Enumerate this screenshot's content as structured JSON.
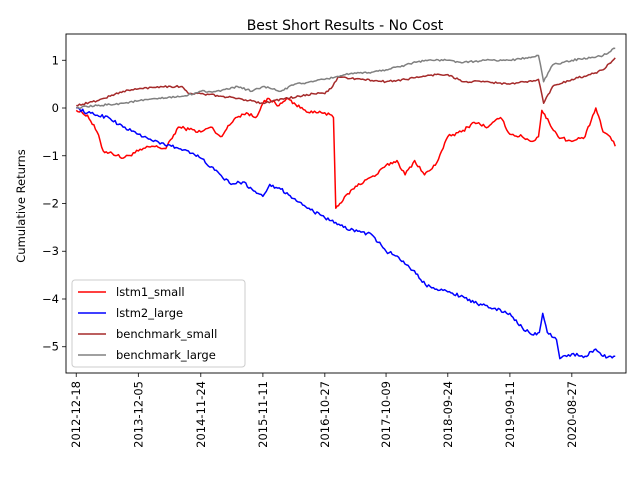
{
  "chart_data": {
    "type": "line",
    "title": "Best Short Results - No Cost",
    "xlabel": "",
    "ylabel": "Cumulative Returns",
    "x_tick_labels": [
      "2012-12-18",
      "2013-12-05",
      "2014-11-24",
      "2015-11-11",
      "2016-10-27",
      "2017-10-09",
      "2018-09-24",
      "2019-09-11",
      "2020-08-27"
    ],
    "xlim": [
      "2012-10-21",
      "2021-06-30"
    ],
    "ylim": [
      -5.55,
      1.55
    ],
    "y_ticks": [
      -5,
      -4,
      -3,
      -2,
      -1,
      0,
      1
    ],
    "legend_position": "lower-left",
    "grid": false,
    "series": [
      {
        "name": "lstm1_small",
        "color": "#ff0000",
        "points": [
          [
            "2012-12-18",
            -0.05
          ],
          [
            "2013-02-20",
            -0.15
          ],
          [
            "2013-04-15",
            -0.5
          ],
          [
            "2013-05-20",
            -0.9
          ],
          [
            "2013-07-10",
            -0.95
          ],
          [
            "2013-09-10",
            -1.05
          ],
          [
            "2013-12-05",
            -0.9
          ],
          [
            "2014-02-20",
            -0.8
          ],
          [
            "2014-05-10",
            -0.85
          ],
          [
            "2014-07-20",
            -0.4
          ],
          [
            "2014-09-20",
            -0.45
          ],
          [
            "2014-11-24",
            -0.5
          ],
          [
            "2015-01-20",
            -0.4
          ],
          [
            "2015-03-15",
            -0.6
          ],
          [
            "2015-06-10",
            -0.2
          ],
          [
            "2015-08-10",
            -0.1
          ],
          [
            "2015-10-01",
            -0.2
          ],
          [
            "2015-11-11",
            0.1
          ],
          [
            "2015-12-15",
            0.2
          ],
          [
            "2016-02-10",
            0.05
          ],
          [
            "2016-04-01",
            0.2
          ],
          [
            "2016-06-10",
            0.0
          ],
          [
            "2016-08-20",
            -0.1
          ],
          [
            "2016-10-27",
            -0.1
          ],
          [
            "2016-12-15",
            -0.2
          ],
          [
            "2016-12-28",
            -2.1
          ],
          [
            "2017-01-20",
            -2.0
          ],
          [
            "2017-04-01",
            -1.7
          ],
          [
            "2017-06-20",
            -1.5
          ],
          [
            "2017-08-15",
            -1.4
          ],
          [
            "2017-10-09",
            -1.2
          ],
          [
            "2017-12-10",
            -1.1
          ],
          [
            "2018-01-25",
            -1.4
          ],
          [
            "2018-03-20",
            -1.1
          ],
          [
            "2018-05-15",
            -1.4
          ],
          [
            "2018-07-15",
            -1.2
          ],
          [
            "2018-08-20",
            -0.9
          ],
          [
            "2018-09-24",
            -0.6
          ],
          [
            "2018-12-10",
            -0.5
          ],
          [
            "2019-02-20",
            -0.3
          ],
          [
            "2019-05-10",
            -0.4
          ],
          [
            "2019-07-20",
            -0.2
          ],
          [
            "2019-09-11",
            -0.55
          ],
          [
            "2019-11-20",
            -0.6
          ],
          [
            "2020-01-15",
            -0.7
          ],
          [
            "2020-02-20",
            -0.6
          ],
          [
            "2020-03-10",
            -0.05
          ],
          [
            "2020-04-20",
            -0.3
          ],
          [
            "2020-06-10",
            -0.6
          ],
          [
            "2020-08-27",
            -0.7
          ],
          [
            "2020-11-10",
            -0.6
          ],
          [
            "2021-01-10",
            0.0
          ],
          [
            "2021-02-20",
            -0.5
          ],
          [
            "2021-04-01",
            -0.6
          ],
          [
            "2021-04-30",
            -0.8
          ]
        ]
      },
      {
        "name": "lstm2_large",
        "color": "#0000ff",
        "points": [
          [
            "2012-12-18",
            0.0
          ],
          [
            "2013-02-20",
            -0.1
          ],
          [
            "2013-06-20",
            -0.2
          ],
          [
            "2013-09-10",
            -0.4
          ],
          [
            "2013-12-05",
            -0.55
          ],
          [
            "2014-03-01",
            -0.7
          ],
          [
            "2014-06-10",
            -0.8
          ],
          [
            "2014-09-15",
            -0.9
          ],
          [
            "2014-11-24",
            -1.05
          ],
          [
            "2015-02-10",
            -1.3
          ],
          [
            "2015-05-15",
            -1.6
          ],
          [
            "2015-07-20",
            -1.55
          ],
          [
            "2015-09-10",
            -1.7
          ],
          [
            "2015-11-11",
            -1.85
          ],
          [
            "2015-12-20",
            -1.6
          ],
          [
            "2016-02-20",
            -1.7
          ],
          [
            "2016-05-10",
            -1.9
          ],
          [
            "2016-07-20",
            -2.1
          ],
          [
            "2016-10-27",
            -2.3
          ],
          [
            "2017-02-10",
            -2.5
          ],
          [
            "2017-05-20",
            -2.6
          ],
          [
            "2017-07-20",
            -2.65
          ],
          [
            "2017-10-09",
            -3.0
          ],
          [
            "2017-12-10",
            -3.1
          ],
          [
            "2018-03-10",
            -3.4
          ],
          [
            "2018-05-20",
            -3.7
          ],
          [
            "2018-09-24",
            -3.85
          ],
          [
            "2018-12-20",
            -3.95
          ],
          [
            "2019-03-10",
            -4.1
          ],
          [
            "2019-06-10",
            -4.2
          ],
          [
            "2019-09-11",
            -4.3
          ],
          [
            "2019-11-20",
            -4.6
          ],
          [
            "2020-01-15",
            -4.75
          ],
          [
            "2020-02-25",
            -4.7
          ],
          [
            "2020-03-15",
            -4.3
          ],
          [
            "2020-04-10",
            -4.7
          ],
          [
            "2020-06-01",
            -4.85
          ],
          [
            "2020-06-20",
            -5.25
          ],
          [
            "2020-08-27",
            -5.15
          ],
          [
            "2020-11-10",
            -5.2
          ],
          [
            "2021-01-10",
            -5.05
          ],
          [
            "2021-02-20",
            -5.2
          ],
          [
            "2021-04-30",
            -5.2
          ]
        ]
      },
      {
        "name": "benchmark_small",
        "color": "#a52a2a",
        "points": [
          [
            "2012-12-18",
            0.05
          ],
          [
            "2013-04-15",
            0.15
          ],
          [
            "2013-09-10",
            0.35
          ],
          [
            "2013-12-05",
            0.4
          ],
          [
            "2014-04-10",
            0.45
          ],
          [
            "2014-08-10",
            0.45
          ],
          [
            "2014-09-20",
            0.3
          ],
          [
            "2014-11-24",
            0.3
          ],
          [
            "2015-03-15",
            0.25
          ],
          [
            "2015-06-20",
            0.2
          ],
          [
            "2015-09-10",
            0.15
          ],
          [
            "2015-11-11",
            0.1
          ],
          [
            "2016-03-15",
            0.2
          ],
          [
            "2016-06-20",
            0.25
          ],
          [
            "2016-08-20",
            0.3
          ],
          [
            "2016-10-27",
            0.3
          ],
          [
            "2016-12-10",
            0.45
          ],
          [
            "2017-01-10",
            0.65
          ],
          [
            "2017-05-20",
            0.6
          ],
          [
            "2017-10-09",
            0.55
          ],
          [
            "2018-01-25",
            0.6
          ],
          [
            "2018-04-20",
            0.65
          ],
          [
            "2018-07-20",
            0.7
          ],
          [
            "2018-09-24",
            0.7
          ],
          [
            "2018-12-20",
            0.55
          ],
          [
            "2019-04-20",
            0.55
          ],
          [
            "2019-09-11",
            0.5
          ],
          [
            "2019-12-10",
            0.55
          ],
          [
            "2020-02-20",
            0.6
          ],
          [
            "2020-03-20",
            0.1
          ],
          [
            "2020-05-10",
            0.45
          ],
          [
            "2020-08-27",
            0.6
          ],
          [
            "2020-12-10",
            0.7
          ],
          [
            "2021-02-20",
            0.8
          ],
          [
            "2021-04-30",
            1.05
          ]
        ]
      },
      {
        "name": "benchmark_large",
        "color": "#808080",
        "points": [
          [
            "2012-12-18",
            0.0
          ],
          [
            "2013-04-15",
            0.05
          ],
          [
            "2013-09-10",
            0.1
          ],
          [
            "2013-12-05",
            0.15
          ],
          [
            "2014-04-10",
            0.2
          ],
          [
            "2014-08-20",
            0.25
          ],
          [
            "2014-11-24",
            0.35
          ],
          [
            "2015-03-15",
            0.35
          ],
          [
            "2015-06-20",
            0.45
          ],
          [
            "2015-09-10",
            0.35
          ],
          [
            "2015-11-11",
            0.45
          ],
          [
            "2016-02-20",
            0.35
          ],
          [
            "2016-05-10",
            0.5
          ],
          [
            "2016-08-20",
            0.55
          ],
          [
            "2016-10-27",
            0.6
          ],
          [
            "2017-02-20",
            0.7
          ],
          [
            "2017-07-20",
            0.75
          ],
          [
            "2017-10-09",
            0.8
          ],
          [
            "2018-01-25",
            0.9
          ],
          [
            "2018-03-10",
            0.95
          ],
          [
            "2018-05-20",
            1.0
          ],
          [
            "2018-09-24",
            1.0
          ],
          [
            "2018-12-20",
            0.95
          ],
          [
            "2019-04-20",
            1.0
          ],
          [
            "2019-09-11",
            1.0
          ],
          [
            "2019-12-10",
            1.05
          ],
          [
            "2020-02-20",
            1.1
          ],
          [
            "2020-03-20",
            0.55
          ],
          [
            "2020-05-10",
            0.9
          ],
          [
            "2020-08-27",
            1.0
          ],
          [
            "2020-12-10",
            1.05
          ],
          [
            "2021-02-20",
            1.1
          ],
          [
            "2021-04-30",
            1.25
          ]
        ]
      }
    ]
  }
}
